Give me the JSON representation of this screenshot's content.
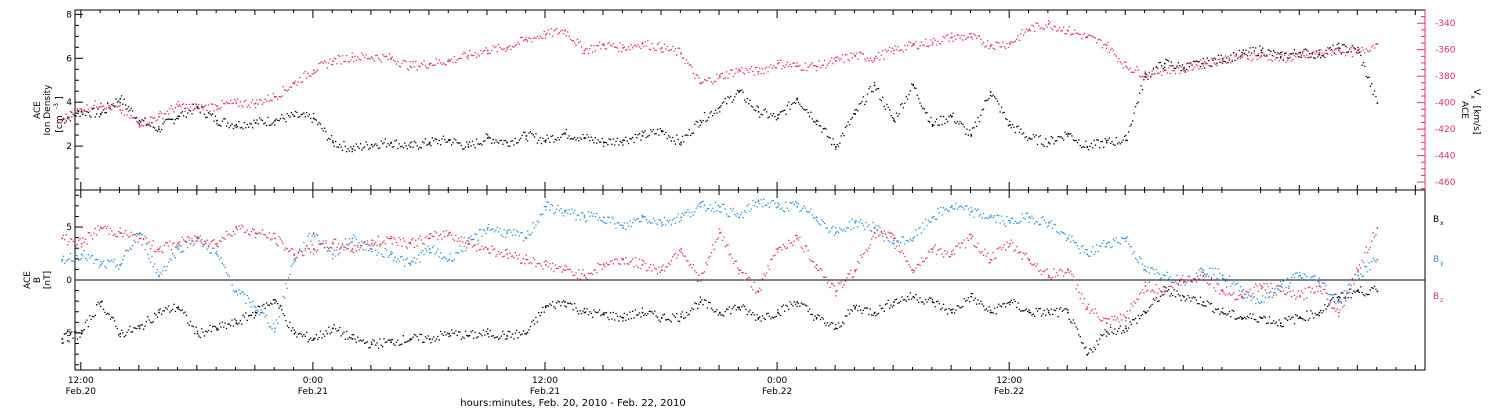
{
  "chart_data": [
    {
      "type": "scatter",
      "panel": "ion density and proton speed",
      "y_left_label": [
        "ACE",
        "Ion Density",
        "[cm",
        "-3",
        "]"
      ],
      "y_left_ticks": [
        "2",
        "4",
        "6",
        "8"
      ],
      "ylim_left": [
        0,
        8.2
      ],
      "y_right_label": [
        "ACE",
        "V",
        "x",
        "[km/s]"
      ],
      "y_right_ticks": [
        "-340",
        "-360",
        "-380",
        "-400",
        "-420",
        "-440",
        "-460"
      ],
      "ylim_right": [
        -466,
        -330
      ],
      "colors": {
        "density": "#000000",
        "velocity": "#e8305a"
      },
      "series": [
        {
          "axis": "left",
          "color": "#000000",
          "x": [
            11,
            12,
            13,
            14,
            15,
            16,
            17,
            18,
            19,
            20,
            21,
            22,
            23,
            24,
            25,
            26,
            27,
            28,
            29,
            30,
            31,
            32,
            33,
            34,
            35,
            36,
            37,
            38,
            39,
            40,
            41,
            42,
            43,
            44,
            45,
            46,
            47,
            48,
            49,
            50,
            51,
            52,
            53,
            54,
            55,
            56,
            57,
            58,
            59,
            60,
            61,
            62,
            63,
            64,
            65,
            66,
            67,
            68,
            69,
            70,
            71,
            72,
            73,
            74,
            75,
            76,
            77,
            78,
            79
          ],
          "y": [
            3.2,
            3.6,
            3.5,
            4.2,
            3.2,
            2.8,
            3.4,
            3.8,
            3.2,
            3.0,
            3.1,
            3.2,
            3.4,
            3.3,
            2.2,
            1.9,
            2.1,
            2.2,
            2.0,
            2.2,
            2.3,
            2.0,
            2.4,
            2.2,
            2.5,
            2.3,
            2.6,
            2.4,
            2.2,
            2.3,
            2.5,
            2.7,
            2.2,
            3.2,
            3.8,
            4.5,
            3.6,
            3.3,
            4.2,
            3.2,
            2.0,
            3.5,
            4.8,
            3.2,
            4.8,
            3.0,
            3.4,
            2.5,
            4.5,
            3.0,
            2.4,
            2.2,
            2.6,
            2.0,
            2.2,
            2.3,
            5.2,
            5.8,
            5.6,
            5.8,
            6.0,
            6.2,
            6.4,
            6.1,
            6.3,
            6.2,
            6.5,
            6.4,
            4.0
          ]
        },
        {
          "axis": "right",
          "color": "#e8305a",
          "x": [
            11,
            12,
            13,
            14,
            15,
            16,
            17,
            18,
            19,
            20,
            21,
            22,
            23,
            24,
            25,
            26,
            27,
            28,
            29,
            30,
            31,
            32,
            33,
            34,
            35,
            36,
            37,
            38,
            39,
            40,
            41,
            42,
            43,
            44,
            45,
            46,
            47,
            48,
            49,
            50,
            51,
            52,
            53,
            54,
            55,
            56,
            57,
            58,
            59,
            60,
            61,
            62,
            63,
            64,
            65,
            66,
            67,
            68,
            69,
            70,
            71,
            72,
            73,
            74,
            75,
            76,
            77,
            78,
            79
          ],
          "y": [
            -412,
            -405,
            -400,
            -405,
            -415,
            -410,
            -402,
            -404,
            -402,
            -400,
            -400,
            -395,
            -385,
            -375,
            -368,
            -365,
            -365,
            -366,
            -372,
            -370,
            -368,
            -364,
            -360,
            -358,
            -352,
            -348,
            -345,
            -360,
            -356,
            -358,
            -355,
            -358,
            -362,
            -385,
            -380,
            -375,
            -376,
            -370,
            -372,
            -372,
            -368,
            -364,
            -366,
            -360,
            -356,
            -354,
            -350,
            -350,
            -356,
            -355,
            -344,
            -340,
            -345,
            -350,
            -356,
            -372,
            -378,
            -375,
            -374,
            -370,
            -367,
            -365,
            -364,
            -366,
            -365,
            -362,
            -360,
            -362,
            -355
          ]
        }
      ]
    },
    {
      "type": "scatter",
      "panel": "ACE magnetic field components",
      "y_label": [
        "ACE",
        "B",
        "[nT]"
      ],
      "y_ticks": [
        "-5",
        "0",
        "5"
      ],
      "ylim": [
        -8.5,
        8.5
      ],
      "zero_line": true,
      "legend": [
        "B",
        "B",
        "B"
      ],
      "legend_subscripts": [
        "x",
        "y",
        "z"
      ],
      "legend_position": "right",
      "series": [
        {
          "name": "Bx",
          "color": "#000000",
          "x": [
            11,
            12,
            13,
            14,
            15,
            16,
            17,
            18,
            19,
            20,
            21,
            22,
            23,
            24,
            25,
            26,
            27,
            28,
            29,
            30,
            31,
            32,
            33,
            34,
            35,
            36,
            37,
            38,
            39,
            40,
            41,
            42,
            43,
            44,
            45,
            46,
            47,
            48,
            49,
            50,
            51,
            52,
            53,
            54,
            55,
            56,
            57,
            58,
            59,
            60,
            61,
            62,
            63,
            64,
            65,
            66,
            67,
            68,
            69,
            70,
            71,
            72,
            73,
            74,
            75,
            76,
            77,
            78,
            79
          ],
          "y": [
            -5.5,
            -5.0,
            -2.0,
            -5.0,
            -4.5,
            -3.0,
            -2.5,
            -5.0,
            -4.5,
            -4.0,
            -3.0,
            -1.8,
            -5.0,
            -5.5,
            -4.5,
            -5.5,
            -6.0,
            -5.8,
            -5.5,
            -5.5,
            -5.0,
            -5.2,
            -5.0,
            -5.2,
            -5.0,
            -2.5,
            -2.0,
            -3.0,
            -3.2,
            -3.5,
            -3.0,
            -3.5,
            -3.4,
            -2.0,
            -3.0,
            -2.5,
            -3.5,
            -3.0,
            -2.0,
            -3.5,
            -4.5,
            -2.5,
            -3.0,
            -2.0,
            -1.5,
            -2.0,
            -3.0,
            -1.5,
            -3.0,
            -2.0,
            -3.0,
            -3.0,
            -3.0,
            -7.0,
            -4.8,
            -4.5,
            -3.0,
            -1.0,
            -1.5,
            -2.0,
            -3.0,
            -3.5,
            -3.5,
            -4.0,
            -3.5,
            -3.0,
            -1.5,
            -1.0,
            -1.0
          ]
        },
        {
          "name": "By",
          "color": "#2a8fe4",
          "x": [
            11,
            12,
            13,
            14,
            15,
            16,
            17,
            18,
            19,
            20,
            21,
            22,
            23,
            24,
            25,
            26,
            27,
            28,
            29,
            30,
            31,
            32,
            33,
            34,
            35,
            36,
            37,
            38,
            39,
            40,
            41,
            42,
            43,
            44,
            45,
            46,
            47,
            48,
            49,
            50,
            51,
            52,
            53,
            54,
            55,
            56,
            57,
            58,
            59,
            60,
            61,
            62,
            63,
            64,
            65,
            66,
            67,
            68,
            69,
            70,
            71,
            72,
            73,
            74,
            75,
            76,
            77,
            78,
            79
          ],
          "y": [
            2.0,
            2.5,
            1.5,
            1.5,
            4.5,
            0.5,
            3.0,
            4.0,
            2.5,
            -1.0,
            -2.5,
            -4.5,
            2.0,
            4.5,
            2.5,
            4.0,
            3.0,
            2.5,
            1.5,
            3.0,
            2.0,
            3.5,
            5.0,
            4.5,
            4.0,
            7.0,
            6.5,
            6.0,
            6.0,
            5.0,
            6.0,
            5.5,
            6.0,
            7.0,
            7.0,
            6.0,
            7.5,
            7.0,
            7.0,
            6.0,
            4.5,
            5.5,
            5.0,
            3.5,
            4.0,
            6.0,
            7.0,
            6.5,
            6.0,
            5.5,
            6.0,
            5.5,
            4.0,
            2.5,
            3.5,
            4.0,
            1.0,
            0.5,
            0.0,
            1.0,
            0.5,
            -1.0,
            -2.0,
            -0.5,
            0.5,
            0.0,
            -2.0,
            0.5,
            2.0
          ]
        },
        {
          "name": "Bz",
          "color": "#e8305a",
          "x": [
            11,
            12,
            13,
            14,
            15,
            16,
            17,
            18,
            19,
            20,
            21,
            22,
            23,
            24,
            25,
            26,
            27,
            28,
            29,
            30,
            31,
            32,
            33,
            34,
            35,
            36,
            37,
            38,
            39,
            40,
            41,
            42,
            43,
            44,
            45,
            46,
            47,
            48,
            49,
            50,
            51,
            52,
            53,
            54,
            55,
            56,
            57,
            58,
            59,
            60,
            61,
            62,
            63,
            64,
            65,
            66,
            67,
            68,
            69,
            70,
            71,
            72,
            73,
            74,
            75,
            76,
            77,
            78,
            79
          ],
          "y": [
            4.0,
            3.5,
            5.0,
            4.5,
            4.0,
            3.0,
            3.5,
            4.0,
            3.5,
            5.0,
            4.5,
            4.0,
            2.5,
            3.0,
            3.5,
            3.0,
            3.5,
            4.0,
            3.5,
            4.0,
            4.5,
            3.5,
            3.0,
            2.5,
            2.0,
            1.5,
            1.0,
            0.5,
            1.5,
            2.0,
            1.5,
            1.0,
            3.0,
            0.0,
            4.5,
            1.0,
            -1.0,
            3.0,
            4.0,
            1.5,
            -1.0,
            1.0,
            4.5,
            4.0,
            1.0,
            3.0,
            2.5,
            4.0,
            2.0,
            3.5,
            2.0,
            0.5,
            1.0,
            -2.5,
            -4.0,
            -3.5,
            -0.5,
            -1.0,
            0.0,
            0.5,
            -1.0,
            -1.5,
            -0.5,
            -1.0,
            -1.5,
            -0.5,
            -3.0,
            1.0,
            5.0
          ]
        }
      ]
    }
  ],
  "time_axis": {
    "xlim": [
      11.7,
      81.5
    ],
    "major_ticks": [
      {
        "x": 12,
        "time": "12:00",
        "date": "Feb.20"
      },
      {
        "x": 24,
        "time": "0:00",
        "date": "Feb.21"
      },
      {
        "x": 36,
        "time": "12:00",
        "date": "Feb.21"
      },
      {
        "x": 48,
        "time": "0:00",
        "date": "Feb.22"
      },
      {
        "x": 60,
        "time": "12:00",
        "date": "Feb.22"
      }
    ],
    "xlabel": "hours:minutes, Feb. 20, 2010 - Feb. 22, 2010"
  }
}
